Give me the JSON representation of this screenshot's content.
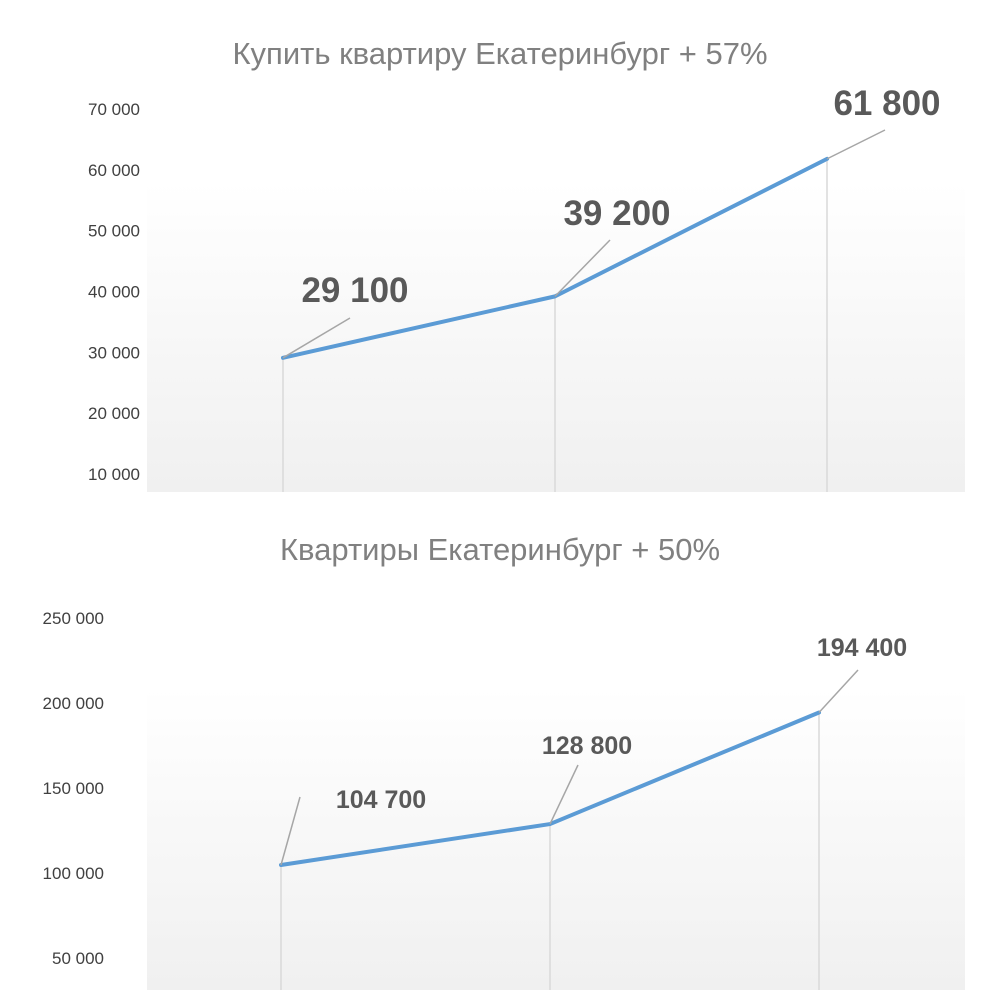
{
  "chart_data": [
    {
      "type": "line",
      "title": "Купить квартиру Екатеринбург + 57%",
      "x": [
        "",
        "",
        ""
      ],
      "series": [
        {
          "values": [
            29100,
            39200,
            61800
          ]
        }
      ],
      "data_labels": [
        "29 100",
        "39 200",
        "61 800"
      ],
      "ylim": [
        10000,
        70000
      ],
      "y_ticks": [
        10000,
        20000,
        30000,
        40000,
        50000,
        60000,
        70000
      ],
      "y_tick_labels": [
        "10 000",
        "20 000",
        "30 000",
        "40 000",
        "50 000",
        "60 000",
        "70 000"
      ],
      "grid": false,
      "line_color": "#5b9bd5"
    },
    {
      "type": "line",
      "title": "Квартиры Екатеринбург + 50%",
      "x": [
        "",
        "",
        ""
      ],
      "series": [
        {
          "values": [
            104700,
            128800,
            194400
          ]
        }
      ],
      "data_labels": [
        "104 700",
        "128 800",
        "194 400"
      ],
      "ylim": [
        50000,
        250000
      ],
      "y_ticks": [
        50000,
        100000,
        150000,
        200000,
        250000
      ],
      "y_tick_labels": [
        "50 000",
        "100 000",
        "150 000",
        "200 000",
        "250 000"
      ],
      "grid": false,
      "line_color": "#5b9bd5"
    }
  ]
}
